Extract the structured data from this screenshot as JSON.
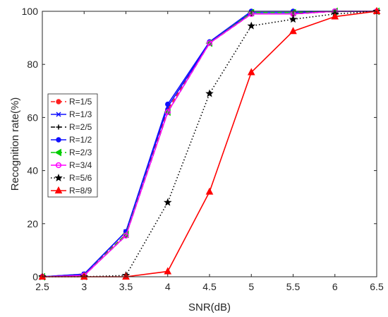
{
  "chart_data": {
    "type": "line",
    "xlabel": "SNR(dB)",
    "ylabel": "Recognition rate(%)",
    "xlim": [
      2.5,
      6.5
    ],
    "ylim": [
      0,
      100
    ],
    "xticks": [
      "2.5",
      "3",
      "3.5",
      "4",
      "4.5",
      "5",
      "5.5",
      "6",
      "6.5"
    ],
    "yticks": [
      "0",
      "20",
      "40",
      "60",
      "80",
      "100"
    ],
    "grid": false,
    "legend_position": "middle-left",
    "x": [
      2.5,
      3,
      3.5,
      4,
      4.5,
      5,
      5.5,
      6,
      6.5
    ],
    "series": [
      {
        "name": "R=1/5",
        "color": "#ff2020",
        "line": "dashed",
        "marker": "circle-filled",
        "values": [
          0,
          1,
          16,
          63,
          88,
          99,
          99,
          100,
          100
        ]
      },
      {
        "name": "R=1/3",
        "color": "#1010ff",
        "line": "solid",
        "marker": "cross",
        "values": [
          0,
          1,
          17,
          64,
          88,
          99.5,
          99.5,
          100,
          100
        ]
      },
      {
        "name": "R=2/5",
        "color": "#000000",
        "line": "dashed",
        "marker": "plus",
        "values": [
          0,
          0.5,
          15.5,
          62,
          88,
          99,
          99,
          100,
          100
        ]
      },
      {
        "name": "R=1/2",
        "color": "#1010ff",
        "line": "solid",
        "marker": "circle-filled",
        "values": [
          0,
          1,
          17,
          65,
          88.5,
          100,
          100,
          100,
          100
        ]
      },
      {
        "name": "R=2/3",
        "color": "#00cc00",
        "line": "dashed",
        "marker": "triangle-left",
        "values": [
          0,
          0.5,
          16,
          62,
          88,
          99.5,
          99.5,
          100,
          100
        ]
      },
      {
        "name": "R=3/4",
        "color": "#ff00ff",
        "line": "solid",
        "marker": "circle-open",
        "values": [
          0,
          0.5,
          15.5,
          62,
          88,
          99,
          99,
          100,
          100
        ]
      },
      {
        "name": "R=5/6",
        "color": "#000000",
        "line": "dotted",
        "marker": "star",
        "values": [
          0,
          0,
          0.5,
          28,
          69,
          94.5,
          97,
          99,
          100
        ]
      },
      {
        "name": "R=8/9",
        "color": "#ff0000",
        "line": "solid",
        "marker": "triangle-up",
        "values": [
          0,
          0,
          0,
          2,
          32,
          77,
          92.5,
          98,
          100
        ]
      }
    ]
  }
}
